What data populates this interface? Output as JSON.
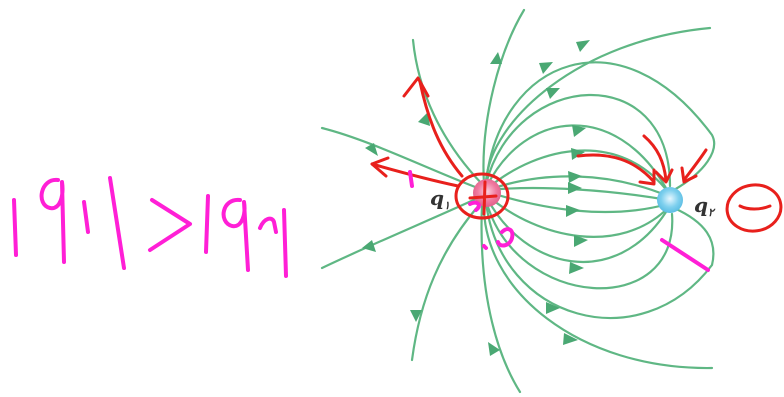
{
  "charges": {
    "q1": {
      "symbol": "q",
      "subscript": "١",
      "color": "#f07aa0",
      "sign_mark": "+"
    },
    "q2": {
      "symbol": "q",
      "subscript": "٢",
      "color": "#7fd0ee",
      "sign_mark": "−"
    }
  },
  "handwritten_relation": "|q١| > |q٢|",
  "colors": {
    "field_lines": "#5fb784",
    "annotation_red": "#e8201c",
    "annotation_magenta": "#ff1fd6"
  }
}
